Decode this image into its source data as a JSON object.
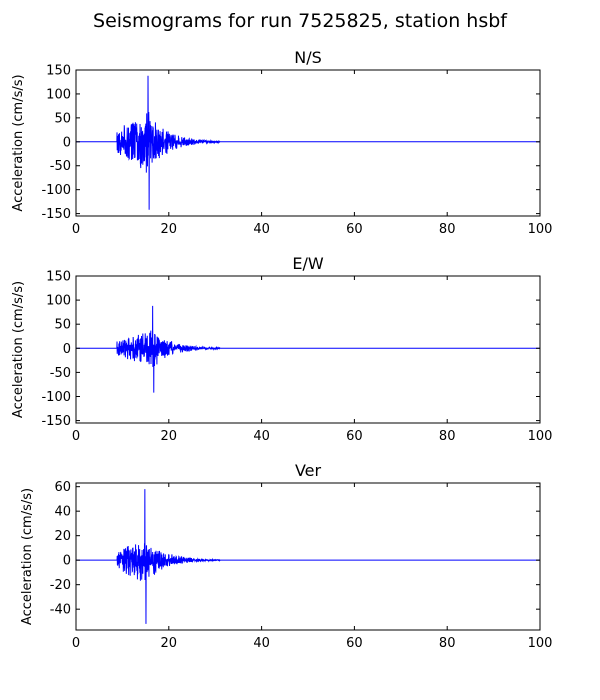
{
  "figure": {
    "title": "Seismograms for run 7525825, station hsbf"
  },
  "chart_data": [
    {
      "type": "line",
      "title": "N/S",
      "xlabel": "",
      "ylabel": "Acceleration (cm/s/s)",
      "xlim": [
        0,
        100
      ],
      "ylim": [
        -155,
        150
      ],
      "xticks": [
        "0",
        "20",
        "40",
        "60",
        "80",
        "100"
      ],
      "yticks": [
        "150",
        "100",
        "50",
        "0",
        "-50",
        "-100",
        "-150"
      ],
      "line_color": "#0000ff",
      "signal": {
        "onset": 8.8,
        "peak_time": 15.5,
        "end": 31,
        "peak_pos": 138,
        "peak_neg": -142,
        "amplitude": 60
      },
      "grid": false
    },
    {
      "type": "line",
      "title": "E/W",
      "xlabel": "",
      "ylabel": "Acceleration (cm/s/s)",
      "xlim": [
        0,
        100
      ],
      "ylim": [
        -155,
        150
      ],
      "xticks": [
        "0",
        "20",
        "40",
        "60",
        "80",
        "100"
      ],
      "yticks": [
        "150",
        "100",
        "50",
        "0",
        "-50",
        "-100",
        "-150"
      ],
      "line_color": "#0000ff",
      "signal": {
        "onset": 8.8,
        "peak_time": 16.5,
        "end": 31,
        "peak_pos": 88,
        "peak_neg": -92,
        "amplitude": 38
      },
      "grid": false
    },
    {
      "type": "line",
      "title": "Ver",
      "xlabel": "",
      "ylabel": "Acceleration (cm/s/s)",
      "xlim": [
        0,
        100
      ],
      "ylim": [
        -57,
        63
      ],
      "xticks": [
        "0",
        "20",
        "40",
        "60",
        "80",
        "100"
      ],
      "yticks": [
        "60",
        "40",
        "20",
        "0",
        "-20",
        "-40"
      ],
      "line_color": "#0000ff",
      "signal": {
        "onset": 8.8,
        "peak_time": 14.8,
        "end": 31,
        "peak_pos": 58,
        "peak_neg": -52,
        "amplitude": 18
      },
      "grid": false
    }
  ]
}
